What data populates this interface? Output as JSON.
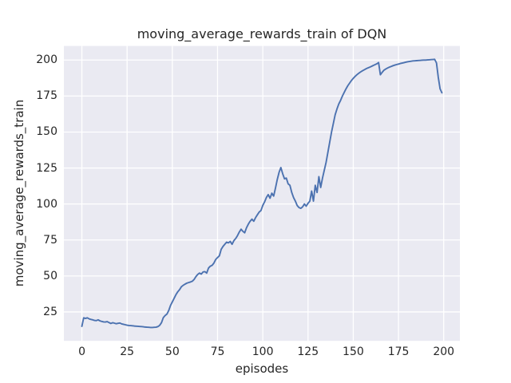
{
  "chart_data": {
    "type": "line",
    "title": "moving_average_rewards_train of DQN",
    "xlabel": "episodes",
    "ylabel": "moving_average_rewards_train",
    "xticks": [
      0,
      25,
      50,
      75,
      100,
      125,
      150,
      175,
      200
    ],
    "yticks": [
      25,
      50,
      75,
      100,
      125,
      150,
      175,
      200
    ],
    "xlim": [
      -9.95,
      208.95
    ],
    "ylim": [
      4.9,
      209.8
    ],
    "grid": true,
    "legend": "none",
    "colors": {
      "line": "#4C72B0",
      "plot_background": "#EAEAF2",
      "gridline": "#FFFFFF",
      "text": "#262626",
      "figure_background": "#FFFFFF"
    },
    "x_is_index": true,
    "values": [
      15.0,
      20.9,
      20.5,
      20.9,
      20.2,
      19.8,
      19.5,
      19.1,
      19.0,
      19.5,
      18.8,
      18.4,
      18.1,
      18.0,
      18.3,
      17.6,
      17.0,
      17.5,
      17.2,
      16.8,
      17.1,
      17.3,
      16.7,
      16.4,
      16.1,
      15.8,
      15.6,
      15.5,
      15.4,
      15.2,
      15.1,
      15.0,
      14.9,
      14.8,
      14.7,
      14.5,
      14.4,
      14.3,
      14.2,
      14.2,
      14.3,
      14.4,
      14.8,
      15.7,
      17.5,
      21.0,
      22.5,
      23.5,
      26.0,
      29.5,
      32.0,
      34.5,
      37.0,
      39.0,
      40.5,
      42.5,
      43.5,
      44.3,
      45.0,
      45.4,
      45.8,
      46.3,
      47.5,
      49.5,
      51.0,
      52.0,
      51.3,
      52.8,
      53.0,
      52.0,
      55.5,
      56.8,
      57.4,
      59.0,
      61.5,
      62.8,
      64.0,
      68.5,
      70.5,
      72.0,
      73.5,
      73.0,
      74.0,
      72.0,
      74.5,
      76.0,
      78.0,
      80.5,
      82.5,
      81.0,
      80.0,
      83.5,
      86.0,
      88.0,
      89.5,
      88.0,
      90.5,
      92.5,
      94.4,
      95.5,
      99.0,
      101.5,
      104.5,
      106.5,
      104.0,
      107.5,
      105.5,
      111.0,
      117.0,
      122.0,
      125.3,
      121.0,
      117.5,
      118.0,
      114.0,
      113.0,
      108.0,
      104.5,
      102.0,
      99.0,
      97.5,
      97.0,
      98.0,
      100.0,
      98.5,
      100.5,
      102.0,
      109.0,
      102.0,
      113.0,
      108.0,
      119.0,
      111.5,
      118.0,
      123.5,
      129.0,
      136.0,
      143.0,
      150.0,
      156.0,
      162.0,
      166.0,
      169.5,
      172.0,
      175.0,
      177.5,
      180.0,
      182.2,
      184.0,
      185.8,
      187.3,
      188.6,
      189.8,
      190.8,
      191.7,
      192.5,
      193.2,
      193.9,
      194.5,
      195.0,
      195.6,
      196.2,
      196.8,
      197.4,
      198.3,
      189.8,
      191.5,
      193.0,
      193.8,
      194.5,
      195.1,
      195.6,
      196.1,
      196.5,
      196.9,
      197.2,
      197.6,
      197.9,
      198.2,
      198.5,
      198.8,
      199.0,
      199.2,
      199.4,
      199.5,
      199.6,
      199.7,
      199.8,
      199.9,
      200.0,
      200.0,
      200.1,
      200.2,
      200.3,
      200.4,
      200.5,
      198.0,
      188.0,
      180.0,
      177.3
    ]
  }
}
